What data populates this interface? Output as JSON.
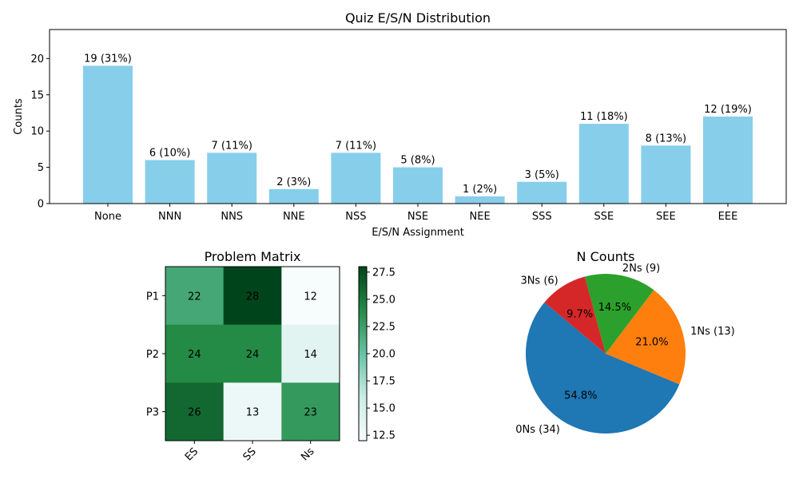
{
  "chart_data": [
    {
      "type": "bar",
      "title": "Quiz E/S/N Distribution",
      "xlabel": "E/S/N Assignment",
      "ylabel": "Counts",
      "ylim": [
        0,
        24
      ],
      "yticks": [
        0,
        5,
        10,
        15,
        20
      ],
      "categories": [
        "None",
        "NNN",
        "NNS",
        "NNE",
        "NSS",
        "NSE",
        "NEE",
        "SSS",
        "SSE",
        "SEE",
        "EEE"
      ],
      "values": [
        19,
        6,
        7,
        2,
        7,
        5,
        1,
        3,
        11,
        8,
        12
      ],
      "data_labels": [
        "19 (31%)",
        "6 (10%)",
        "7 (11%)",
        "2 (3%)",
        "7 (11%)",
        "5 (8%)",
        "1 (2%)",
        "3 (5%)",
        "11 (18%)",
        "8 (13%)",
        "12 (19%)"
      ],
      "color": "#87ceeb",
      "grid": false
    },
    {
      "type": "heatmap",
      "title": "Problem Matrix",
      "rows": [
        "P1",
        "P2",
        "P3"
      ],
      "columns": [
        "ES",
        "SS",
        "Ns"
      ],
      "values": [
        [
          22,
          28,
          12
        ],
        [
          24,
          24,
          14
        ],
        [
          26,
          13,
          23
        ]
      ],
      "colormap": "Greens-like",
      "colorbar_ticks": [
        12.5,
        15.0,
        17.5,
        20.0,
        22.5,
        25.0,
        27.5
      ],
      "colorbar_range": [
        12,
        28
      ]
    },
    {
      "type": "pie",
      "title": "N Counts",
      "labels": [
        "0Ns (34)",
        "1Ns (13)",
        "2Ns (9)",
        "3Ns (6)"
      ],
      "values": [
        34,
        13,
        9,
        6
      ],
      "percent_labels": [
        "54.8%",
        "21.0%",
        "14.5%",
        "9.7%"
      ],
      "colors": [
        "#1f77b4",
        "#ff7f0e",
        "#2ca02c",
        "#d62728"
      ],
      "start_angle_deg": 140
    }
  ]
}
